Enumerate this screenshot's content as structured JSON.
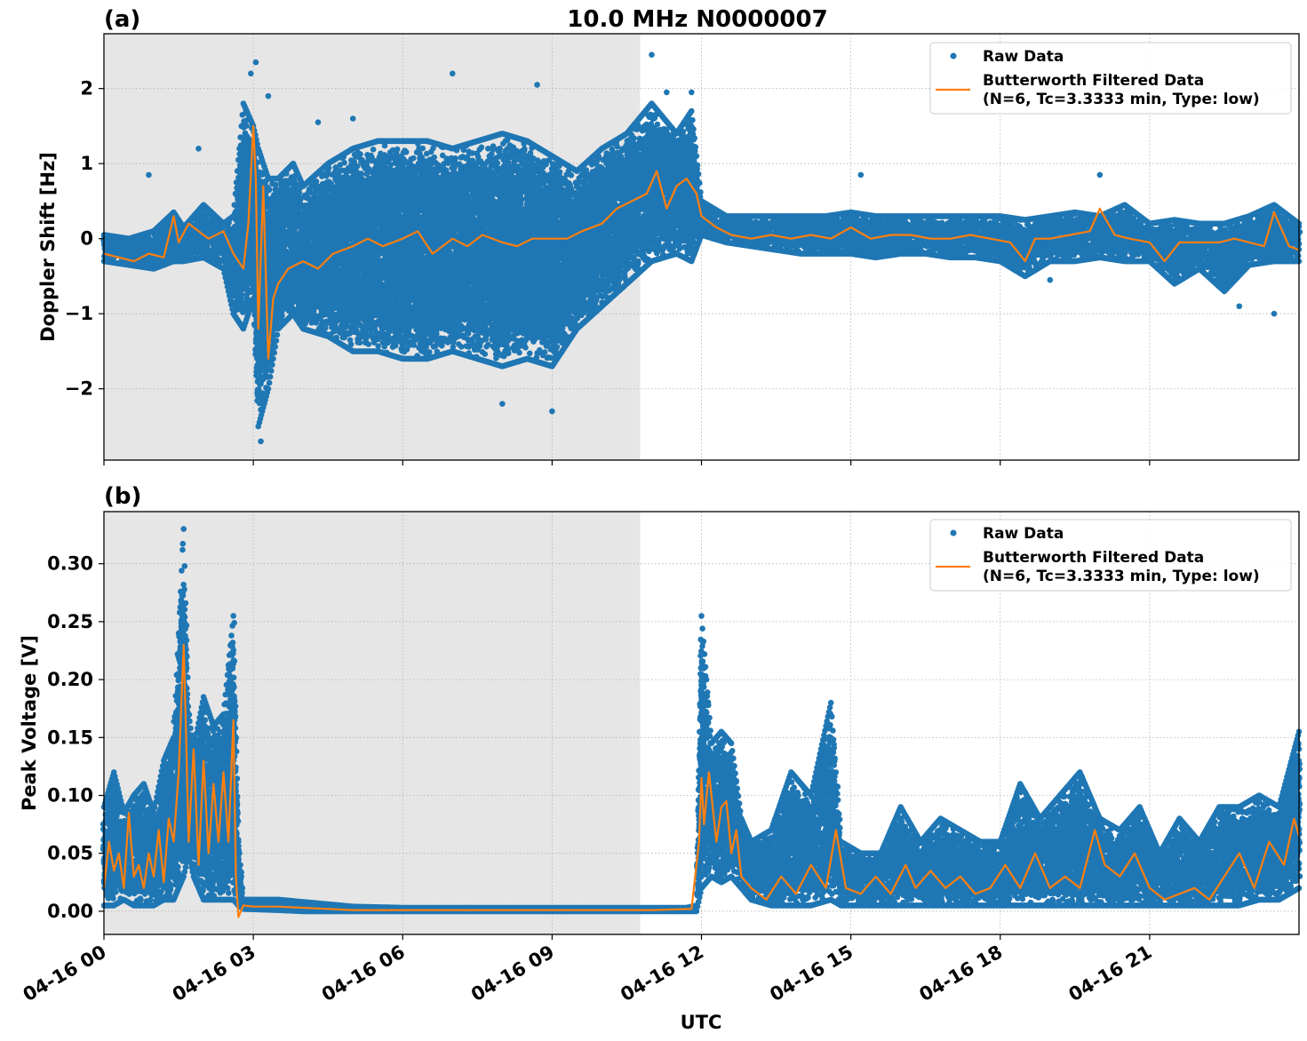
{
  "figure": {
    "title": "10.0 MHz N0000007",
    "xlabel": "UTC"
  },
  "chart_data": [
    {
      "panel_label": "(a)",
      "type": "scatter",
      "title": "10.0 MHz N0000007",
      "xlabel": "",
      "ylabel": "Doppler Shift [Hz]",
      "xlim_hours": [
        0,
        24
      ],
      "ylim": [
        -2.95,
        2.73
      ],
      "yticks": [
        2,
        1,
        0,
        -1,
        -2
      ],
      "ytick_labels": [
        "2",
        "1",
        "0",
        "−1",
        "−2"
      ],
      "xticks_hours": [
        0,
        3,
        6,
        9,
        12,
        15,
        18,
        21
      ],
      "xtick_labels": [
        "04-16 00",
        "04-16 03",
        "04-16 06",
        "04-16 09",
        "04-16 12",
        "04-16 15",
        "04-16 18",
        "04-16 21"
      ],
      "grid": true,
      "shaded_night_hours": [
        0,
        10.75
      ],
      "legend": {
        "position": "top-right",
        "entries": [
          {
            "label": "Raw Data",
            "style": "marker",
            "color": "#1f77b4"
          },
          {
            "label": "Butterworth Filtered Data",
            "label_line2": "(N=6, Tc=3.3333 min, Type: low)",
            "style": "line",
            "color": "#ff7f0e"
          }
        ]
      },
      "series": [
        {
          "name": "Raw Data (envelope min/max)",
          "x_hours": [
            0,
            0.5,
            1,
            1.4,
            1.6,
            2,
            2.4,
            2.6,
            2.8,
            3.0,
            3.1,
            3.3,
            3.5,
            3.8,
            4,
            4.5,
            5,
            5.5,
            6,
            6.5,
            7,
            7.5,
            8,
            8.5,
            9,
            9.5,
            10,
            10.5,
            11,
            11.5,
            11.8,
            12,
            12.5,
            13,
            13.5,
            14,
            14.5,
            15,
            15.5,
            16,
            16.5,
            17,
            17.5,
            18,
            18.5,
            19,
            19.5,
            20,
            20.5,
            21,
            21.5,
            22,
            22.5,
            23,
            23.5,
            24
          ],
          "min": [
            -0.3,
            -0.35,
            -0.4,
            -0.3,
            -0.3,
            -0.25,
            -0.4,
            -1.0,
            -1.2,
            -0.8,
            -2.5,
            -2.0,
            -1.2,
            -1.0,
            -1.2,
            -1.3,
            -1.5,
            -1.5,
            -1.6,
            -1.6,
            -1.5,
            -1.6,
            -1.7,
            -1.6,
            -1.7,
            -1.2,
            -0.9,
            -0.6,
            -0.3,
            -0.2,
            -0.3,
            0.05,
            -0.05,
            -0.1,
            -0.15,
            -0.2,
            -0.2,
            -0.2,
            -0.25,
            -0.2,
            -0.2,
            -0.25,
            -0.25,
            -0.3,
            -0.5,
            -0.3,
            -0.3,
            -0.25,
            -0.3,
            -0.3,
            -0.6,
            -0.4,
            -0.7,
            -0.35,
            -0.3,
            -0.3
          ],
          "max": [
            0.05,
            0.0,
            0.1,
            0.35,
            0.15,
            0.45,
            0.2,
            0.3,
            1.8,
            1.5,
            1.2,
            0.8,
            0.8,
            1.0,
            0.7,
            1.0,
            1.2,
            1.3,
            1.3,
            1.3,
            1.2,
            1.3,
            1.4,
            1.3,
            1.1,
            0.9,
            1.2,
            1.4,
            1.8,
            1.4,
            1.7,
            0.5,
            0.3,
            0.3,
            0.3,
            0.3,
            0.3,
            0.35,
            0.3,
            0.3,
            0.3,
            0.3,
            0.3,
            0.3,
            0.25,
            0.3,
            0.35,
            0.3,
            0.45,
            0.2,
            0.25,
            0.2,
            0.2,
            0.3,
            0.45,
            0.2
          ],
          "outliers": [
            [
              0.9,
              0.85
            ],
            [
              1.9,
              1.2
            ],
            [
              2.95,
              2.2
            ],
            [
              3.05,
              2.35
            ],
            [
              3.15,
              -2.7
            ],
            [
              3.3,
              1.9
            ],
            [
              4.3,
              1.55
            ],
            [
              5.0,
              1.6
            ],
            [
              7.0,
              2.2
            ],
            [
              8.7,
              2.05
            ],
            [
              8.0,
              -2.2
            ],
            [
              9.0,
              -2.3
            ],
            [
              11.0,
              2.45
            ],
            [
              11.3,
              1.95
            ],
            [
              11.8,
              1.95
            ],
            [
              15.2,
              0.85
            ],
            [
              19.0,
              -0.55
            ],
            [
              20.0,
              0.85
            ],
            [
              23.5,
              -1.0
            ],
            [
              22.8,
              -0.9
            ]
          ]
        },
        {
          "name": "Butterworth Filtered Data",
          "x_hours": [
            0,
            0.3,
            0.6,
            0.9,
            1.2,
            1.4,
            1.5,
            1.7,
            1.9,
            2.1,
            2.4,
            2.6,
            2.8,
            2.9,
            3.0,
            3.05,
            3.1,
            3.2,
            3.3,
            3.4,
            3.5,
            3.7,
            4.0,
            4.3,
            4.6,
            5.0,
            5.3,
            5.6,
            6.0,
            6.3,
            6.6,
            7.0,
            7.3,
            7.6,
            8.0,
            8.3,
            8.6,
            9.0,
            9.3,
            9.6,
            10.0,
            10.3,
            10.6,
            10.9,
            11.1,
            11.3,
            11.5,
            11.7,
            11.9,
            12.0,
            12.3,
            12.6,
            13.0,
            13.4,
            13.8,
            14.2,
            14.6,
            15.0,
            15.4,
            15.8,
            16.2,
            16.6,
            17.0,
            17.4,
            17.8,
            18.2,
            18.5,
            18.7,
            19.0,
            19.4,
            19.8,
            20.0,
            20.3,
            20.6,
            21.0,
            21.3,
            21.6,
            22.0,
            22.4,
            22.7,
            23.0,
            23.3,
            23.5,
            23.8,
            24.0
          ],
          "y": [
            -0.2,
            -0.25,
            -0.3,
            -0.2,
            -0.25,
            0.3,
            -0.05,
            0.2,
            0.1,
            0.0,
            0.1,
            -0.2,
            -0.4,
            0.2,
            1.5,
            0.8,
            -1.2,
            0.7,
            -1.6,
            -0.8,
            -0.6,
            -0.4,
            -0.3,
            -0.4,
            -0.2,
            -0.1,
            0.0,
            -0.1,
            0.0,
            0.1,
            -0.2,
            0.0,
            -0.1,
            0.05,
            -0.05,
            -0.1,
            0.0,
            0.0,
            0.0,
            0.1,
            0.2,
            0.4,
            0.5,
            0.6,
            0.9,
            0.4,
            0.7,
            0.8,
            0.6,
            0.3,
            0.15,
            0.05,
            0.0,
            0.05,
            0.0,
            0.05,
            0.0,
            0.15,
            0.0,
            0.05,
            0.05,
            0.0,
            0.0,
            0.05,
            0.0,
            -0.05,
            -0.3,
            0.0,
            0.0,
            0.05,
            0.1,
            0.4,
            0.05,
            0.0,
            -0.05,
            -0.3,
            -0.05,
            -0.05,
            -0.05,
            0.0,
            -0.05,
            -0.1,
            0.35,
            -0.1,
            -0.15
          ]
        }
      ]
    },
    {
      "panel_label": "(b)",
      "type": "scatter",
      "xlabel": "UTC",
      "ylabel": "Peak Voltage [V]",
      "xlim_hours": [
        0,
        24
      ],
      "ylim": [
        -0.02,
        0.345
      ],
      "yticks": [
        0.3,
        0.25,
        0.2,
        0.15,
        0.1,
        0.05,
        0.0
      ],
      "ytick_labels": [
        "0.30",
        "0.25",
        "0.20",
        "0.15",
        "0.10",
        "0.05",
        "0.00"
      ],
      "xticks_hours": [
        0,
        3,
        6,
        9,
        12,
        15,
        18,
        21
      ],
      "xtick_labels": [
        "04-16 00",
        "04-16 03",
        "04-16 06",
        "04-16 09",
        "04-16 12",
        "04-16 15",
        "04-16 18",
        "04-16 21"
      ],
      "grid": true,
      "shaded_night_hours": [
        0,
        10.75
      ],
      "legend": {
        "position": "top-right",
        "entries": [
          {
            "label": "Raw Data",
            "style": "marker",
            "color": "#1f77b4"
          },
          {
            "label": "Butterworth Filtered Data",
            "label_line2": "(N=6, Tc=3.3333 min, Type: low)",
            "style": "line",
            "color": "#ff7f0e"
          }
        ]
      },
      "series": [
        {
          "name": "Raw Data (envelope min/max)",
          "x_hours": [
            0,
            0.2,
            0.4,
            0.6,
            0.8,
            1.0,
            1.2,
            1.4,
            1.6,
            1.7,
            1.8,
            2.0,
            2.2,
            2.4,
            2.6,
            2.7,
            2.8,
            3.5,
            4.0,
            5,
            6,
            7,
            8,
            9,
            10,
            11,
            11.7,
            11.9,
            12.0,
            12.2,
            12.4,
            12.6,
            12.8,
            13.0,
            13.4,
            13.8,
            14.2,
            14.6,
            14.8,
            15.2,
            15.6,
            16.0,
            16.4,
            16.8,
            17.2,
            17.6,
            18.0,
            18.4,
            18.8,
            19.2,
            19.6,
            20.0,
            20.4,
            20.8,
            21.2,
            21.6,
            22.0,
            22.4,
            22.8,
            23.2,
            23.6,
            24.0
          ],
          "min": [
            0.005,
            0.005,
            0.01,
            0.005,
            0.005,
            0.005,
            0.01,
            0.01,
            0.03,
            0.05,
            0.03,
            0.01,
            0.01,
            0.01,
            0.01,
            0.005,
            0.002,
            0.001,
            0.0,
            0.0,
            0.0,
            0.0,
            0.0,
            0.0,
            0.0,
            0.0,
            0.0,
            0.0,
            0.02,
            0.03,
            0.025,
            0.03,
            0.02,
            0.01,
            0.005,
            0.005,
            0.005,
            0.01,
            0.005,
            0.005,
            0.005,
            0.005,
            0.005,
            0.005,
            0.005,
            0.005,
            0.005,
            0.005,
            0.005,
            0.005,
            0.005,
            0.005,
            0.005,
            0.005,
            0.005,
            0.005,
            0.005,
            0.005,
            0.005,
            0.01,
            0.01,
            0.02
          ],
          "max": [
            0.09,
            0.12,
            0.085,
            0.1,
            0.11,
            0.085,
            0.13,
            0.15,
            0.33,
            0.17,
            0.14,
            0.185,
            0.16,
            0.17,
            0.255,
            0.06,
            0.01,
            0.01,
            0.008,
            0.004,
            0.003,
            0.003,
            0.003,
            0.003,
            0.003,
            0.003,
            0.003,
            0.005,
            0.255,
            0.145,
            0.155,
            0.145,
            0.08,
            0.06,
            0.07,
            0.12,
            0.1,
            0.18,
            0.06,
            0.05,
            0.05,
            0.09,
            0.06,
            0.08,
            0.07,
            0.06,
            0.06,
            0.11,
            0.08,
            0.1,
            0.12,
            0.08,
            0.07,
            0.09,
            0.05,
            0.08,
            0.06,
            0.09,
            0.09,
            0.1,
            0.09,
            0.155
          ]
        },
        {
          "name": "Butterworth Filtered Data",
          "x_hours": [
            0,
            0.1,
            0.2,
            0.3,
            0.4,
            0.5,
            0.6,
            0.7,
            0.8,
            0.9,
            1.0,
            1.1,
            1.2,
            1.3,
            1.4,
            1.5,
            1.6,
            1.65,
            1.7,
            1.8,
            1.9,
            2.0,
            2.1,
            2.2,
            2.3,
            2.4,
            2.5,
            2.6,
            2.65,
            2.7,
            2.8,
            3.0,
            3.5,
            4.0,
            4.5,
            5,
            6,
            7,
            8,
            9,
            10,
            11,
            11.8,
            11.95,
            12.0,
            12.05,
            12.15,
            12.3,
            12.4,
            12.5,
            12.6,
            12.7,
            12.8,
            13.0,
            13.3,
            13.6,
            13.9,
            14.2,
            14.5,
            14.7,
            14.9,
            15.2,
            15.5,
            15.8,
            16.1,
            16.3,
            16.6,
            16.9,
            17.2,
            17.5,
            17.8,
            18.1,
            18.4,
            18.7,
            19.0,
            19.3,
            19.6,
            19.9,
            20.1,
            20.4,
            20.7,
            21.0,
            21.3,
            21.6,
            21.9,
            22.2,
            22.5,
            22.8,
            23.1,
            23.4,
            23.7,
            23.9,
            24.0
          ],
          "y": [
            0.02,
            0.06,
            0.035,
            0.05,
            0.02,
            0.085,
            0.03,
            0.04,
            0.02,
            0.05,
            0.03,
            0.07,
            0.025,
            0.08,
            0.06,
            0.12,
            0.23,
            0.15,
            0.06,
            0.14,
            0.04,
            0.13,
            0.05,
            0.11,
            0.06,
            0.12,
            0.06,
            0.165,
            0.03,
            -0.005,
            0.005,
            0.004,
            0.004,
            0.003,
            0.002,
            0.001,
            0.001,
            0.001,
            0.001,
            0.001,
            0.001,
            0.001,
            0.002,
            0.06,
            0.115,
            0.075,
            0.12,
            0.06,
            0.09,
            0.095,
            0.05,
            0.07,
            0.03,
            0.02,
            0.01,
            0.03,
            0.015,
            0.04,
            0.02,
            0.07,
            0.02,
            0.015,
            0.03,
            0.015,
            0.04,
            0.02,
            0.035,
            0.02,
            0.03,
            0.015,
            0.02,
            0.04,
            0.02,
            0.05,
            0.02,
            0.03,
            0.02,
            0.07,
            0.04,
            0.03,
            0.05,
            0.02,
            0.01,
            0.015,
            0.02,
            0.01,
            0.03,
            0.05,
            0.02,
            0.06,
            0.04,
            0.08,
            0.065
          ]
        }
      ]
    }
  ]
}
